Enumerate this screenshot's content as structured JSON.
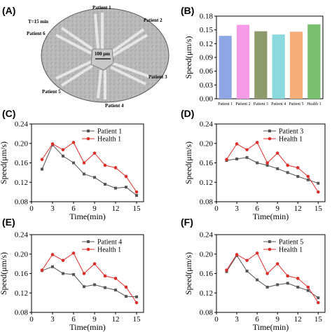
{
  "panels": {
    "A": "(A)",
    "B": "(B)",
    "C": "(C)",
    "D": "(D)",
    "E": "(E)",
    "F": "(F)"
  },
  "micrograph": {
    "time_label": "T=15 min",
    "scale_label": "100 μm",
    "labels": [
      "Patient 1",
      "Patient 2",
      "Patient 3",
      "Patient 4",
      "Patient 5",
      "Patient 6"
    ]
  },
  "chart_data": [
    {
      "panel": "B",
      "type": "bar",
      "categories": [
        "Patient 1",
        "Patient 2",
        "Patient 3",
        "Patient 4",
        "Patient 5",
        "Health 1"
      ],
      "values": [
        0.137,
        0.161,
        0.147,
        0.14,
        0.146,
        0.162
      ],
      "colors": [
        "#8fa6e6",
        "#f59be8",
        "#8c9a6c",
        "#8ad9dd",
        "#f6ad77",
        "#78c06e"
      ],
      "ylabel": "Speed(μm/s)",
      "ylim": [
        0,
        0.18
      ],
      "yticks": [
        "0.00",
        "0.03",
        "0.06",
        "0.09",
        "0.12",
        "0.15",
        "0.18"
      ]
    },
    {
      "panel": "C",
      "type": "line",
      "xlabel": "Time(min)",
      "ylabel": "Speed(μm/s)",
      "xlim": [
        0,
        16
      ],
      "ylim": [
        0.08,
        0.24
      ],
      "xticks": [
        "0",
        "3",
        "6",
        "9",
        "12",
        "15"
      ],
      "yticks": [
        "0.08",
        "0.12",
        "0.16",
        "0.20",
        "0.24"
      ],
      "x": [
        1.5,
        3,
        4.5,
        6,
        7.5,
        9,
        10.5,
        12,
        13.5,
        15
      ],
      "series": [
        {
          "name": "Patient 1",
          "color": "#555555",
          "marker": "square",
          "values": [
            0.147,
            0.197,
            0.174,
            0.16,
            0.137,
            0.13,
            0.116,
            0.108,
            0.11,
            0.093
          ]
        },
        {
          "name": "Health 1",
          "color": "#d9302c",
          "marker": "circle",
          "values": [
            0.167,
            0.199,
            0.187,
            0.202,
            0.16,
            0.18,
            0.155,
            0.15,
            0.132,
            0.1
          ]
        }
      ]
    },
    {
      "panel": "D",
      "type": "line",
      "xlabel": "Time(min)",
      "ylabel": "Speed(μm/s)",
      "xlim": [
        0,
        16
      ],
      "ylim": [
        0.08,
        0.24
      ],
      "xticks": [
        "0",
        "3",
        "6",
        "9",
        "12",
        "15"
      ],
      "yticks": [
        "0.08",
        "0.12",
        "0.16",
        "0.20",
        "0.24"
      ],
      "x": [
        1.5,
        3,
        4.5,
        6,
        7.5,
        9,
        10.5,
        12,
        13.5,
        15
      ],
      "series": [
        {
          "name": "Patient 3",
          "color": "#555555",
          "marker": "square",
          "values": [
            0.165,
            0.168,
            0.171,
            0.16,
            0.155,
            0.148,
            0.14,
            0.132,
            0.125,
            0.118
          ]
        },
        {
          "name": "Health 1",
          "color": "#d9302c",
          "marker": "circle",
          "values": [
            0.167,
            0.199,
            0.187,
            0.202,
            0.16,
            0.18,
            0.155,
            0.15,
            0.132,
            0.1
          ]
        }
      ]
    },
    {
      "panel": "E",
      "type": "line",
      "xlabel": "Time(min)",
      "ylabel": "Speed(μm/s)",
      "xlim": [
        0,
        16
      ],
      "ylim": [
        0.08,
        0.24
      ],
      "xticks": [
        "0",
        "3",
        "6",
        "9",
        "12",
        "15"
      ],
      "yticks": [
        "0.08",
        "0.12",
        "0.16",
        "0.20",
        "0.24"
      ],
      "x": [
        1.5,
        3,
        4.5,
        6,
        7.5,
        9,
        10.5,
        12,
        13.5,
        15
      ],
      "series": [
        {
          "name": "Patient 4",
          "color": "#555555",
          "marker": "square",
          "values": [
            0.166,
            0.174,
            0.16,
            0.158,
            0.133,
            0.137,
            0.131,
            0.126,
            0.113,
            0.112
          ]
        },
        {
          "name": "Health 1",
          "color": "#d9302c",
          "marker": "circle",
          "values": [
            0.167,
            0.199,
            0.187,
            0.202,
            0.16,
            0.18,
            0.155,
            0.15,
            0.132,
            0.1
          ]
        }
      ]
    },
    {
      "panel": "F",
      "type": "line",
      "xlabel": "Time(min)",
      "ylabel": "Speed(μm/s)",
      "xlim": [
        0,
        16
      ],
      "ylim": [
        0.08,
        0.24
      ],
      "xticks": [
        "0",
        "3",
        "6",
        "9",
        "12",
        "15"
      ],
      "yticks": [
        "0.08",
        "0.12",
        "0.16",
        "0.20",
        "0.24"
      ],
      "x": [
        1.5,
        3,
        4.5,
        6,
        7.5,
        9,
        10.5,
        12,
        13.5,
        15
      ],
      "series": [
        {
          "name": "Patient 5",
          "color": "#555555",
          "marker": "square",
          "values": [
            0.164,
            0.197,
            0.165,
            0.147,
            0.132,
            0.137,
            0.14,
            0.132,
            0.125,
            0.11
          ]
        },
        {
          "name": "Health 1",
          "color": "#d9302c",
          "marker": "circle",
          "values": [
            0.167,
            0.199,
            0.187,
            0.202,
            0.16,
            0.18,
            0.155,
            0.15,
            0.132,
            0.1
          ]
        }
      ]
    }
  ]
}
